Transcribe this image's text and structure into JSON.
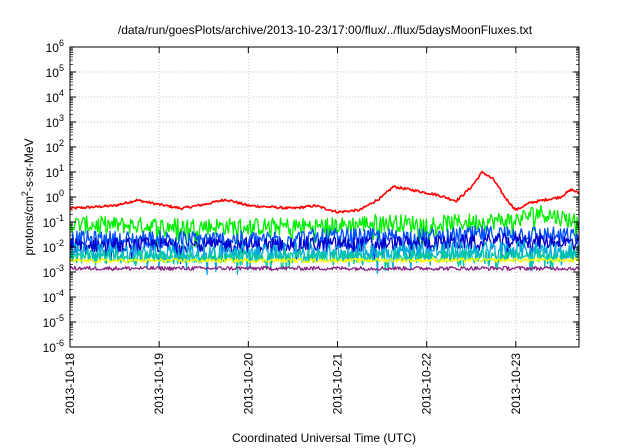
{
  "chart_data": {
    "type": "line",
    "title": "/data/run/goesPlots/archive/2013-10-23/17:00/flux/../flux/5daysMoonFluxes.txt",
    "xlabel": "Coordinated Universal Time (UTC)",
    "ylabel": "protons/cm2-s-sr-MeV",
    "ylabel_parts": {
      "pre": "protons/cm",
      "sup": "2",
      "post": "-s-sr-MeV"
    },
    "yscale": "log",
    "ylim": [
      1e-06,
      1000000.0
    ],
    "y_ticks": [
      {
        "base": "10",
        "exp": "-6"
      },
      {
        "base": "10",
        "exp": "-5"
      },
      {
        "base": "10",
        "exp": "-4"
      },
      {
        "base": "10",
        "exp": "-3"
      },
      {
        "base": "10",
        "exp": "-2"
      },
      {
        "base": "10",
        "exp": "-1"
      },
      {
        "base": "10",
        "exp": "0"
      },
      {
        "base": "10",
        "exp": "1"
      },
      {
        "base": "10",
        "exp": "2"
      },
      {
        "base": "10",
        "exp": "3"
      },
      {
        "base": "10",
        "exp": "4"
      },
      {
        "base": "10",
        "exp": "5"
      },
      {
        "base": "10",
        "exp": "6"
      }
    ],
    "xlim": [
      "2013-10-18",
      "2013-10-23 17:00"
    ],
    "x_ticks": [
      "2013-10-18",
      "2013-10-19",
      "2013-10-20",
      "2013-10-21",
      "2013-10-22",
      "2013-10-23"
    ],
    "grid": true,
    "series": [
      {
        "color": "#ff0000",
        "noise": 0.05,
        "values": [
          {
            "x": "2013-10-18 00:00",
            "y": 0.35
          },
          {
            "x": "2013-10-18 12:00",
            "y": 0.45
          },
          {
            "x": "2013-10-18 18:00",
            "y": 0.75
          },
          {
            "x": "2013-10-19 00:00",
            "y": 0.5
          },
          {
            "x": "2013-10-19 06:00",
            "y": 0.35
          },
          {
            "x": "2013-10-19 12:00",
            "y": 0.5
          },
          {
            "x": "2013-10-19 18:00",
            "y": 0.8
          },
          {
            "x": "2013-10-20 00:00",
            "y": 0.45
          },
          {
            "x": "2013-10-20 12:00",
            "y": 0.35
          },
          {
            "x": "2013-10-20 18:00",
            "y": 0.45
          },
          {
            "x": "2013-10-21 00:00",
            "y": 0.25
          },
          {
            "x": "2013-10-21 06:00",
            "y": 0.3
          },
          {
            "x": "2013-10-21 12:00",
            "y": 1.0
          },
          {
            "x": "2013-10-21 15:00",
            "y": 2.6
          },
          {
            "x": "2013-10-21 21:00",
            "y": 1.8
          },
          {
            "x": "2013-10-22 03:00",
            "y": 1.2
          },
          {
            "x": "2013-10-22 08:00",
            "y": 0.7
          },
          {
            "x": "2013-10-22 12:00",
            "y": 2.5
          },
          {
            "x": "2013-10-22 15:00",
            "y": 10.0
          },
          {
            "x": "2013-10-22 18:00",
            "y": 5.0
          },
          {
            "x": "2013-10-22 21:00",
            "y": 1.0
          },
          {
            "x": "2013-10-23 00:00",
            "y": 0.3
          },
          {
            "x": "2013-10-23 04:00",
            "y": 0.6
          },
          {
            "x": "2013-10-23 12:00",
            "y": 1.0
          },
          {
            "x": "2013-10-23 15:00",
            "y": 2.0
          },
          {
            "x": "2013-10-23 17:00",
            "y": 1.4
          }
        ]
      },
      {
        "color": "#00ee00",
        "noise": 0.35,
        "values": [
          {
            "x": "2013-10-18 00:00",
            "y": 0.08
          },
          {
            "x": "2013-10-19 00:00",
            "y": 0.07
          },
          {
            "x": "2013-10-20 00:00",
            "y": 0.065
          },
          {
            "x": "2013-10-21 00:00",
            "y": 0.07
          },
          {
            "x": "2013-10-21 12:00",
            "y": 0.1
          },
          {
            "x": "2013-10-22 00:00",
            "y": 0.08
          },
          {
            "x": "2013-10-23 00:00",
            "y": 0.12
          },
          {
            "x": "2013-10-23 06:00",
            "y": 0.25
          },
          {
            "x": "2013-10-23 17:00",
            "y": 0.1
          }
        ]
      },
      {
        "color": "#0050ff",
        "noise": 0.35,
        "values": [
          {
            "x": "2013-10-18 00:00",
            "y": 0.02
          },
          {
            "x": "2013-10-19 00:00",
            "y": 0.02
          },
          {
            "x": "2013-10-20 00:00",
            "y": 0.02
          },
          {
            "x": "2013-10-21 00:00",
            "y": 0.025
          },
          {
            "x": "2013-10-22 00:00",
            "y": 0.025
          },
          {
            "x": "2013-10-23 00:00",
            "y": 0.035
          },
          {
            "x": "2013-10-23 17:00",
            "y": 0.025
          }
        ]
      },
      {
        "color": "#0000cc",
        "noise": 0.3,
        "values": [
          {
            "x": "2013-10-18 00:00",
            "y": 0.012
          },
          {
            "x": "2013-10-20 00:00",
            "y": 0.012
          },
          {
            "x": "2013-10-21 00:00",
            "y": 0.013
          },
          {
            "x": "2013-10-22 00:00",
            "y": 0.014
          },
          {
            "x": "2013-10-23 00:00",
            "y": 0.018
          },
          {
            "x": "2013-10-23 17:00",
            "y": 0.015
          }
        ]
      },
      {
        "color": "#00aadd",
        "noise": 0.35,
        "values": [
          {
            "x": "2013-10-18 00:00",
            "y": 0.006
          },
          {
            "x": "2013-10-20 00:00",
            "y": 0.006
          },
          {
            "x": "2013-10-22 00:00",
            "y": 0.007
          },
          {
            "x": "2013-10-23 00:00",
            "y": 0.008
          },
          {
            "x": "2013-10-23 17:00",
            "y": 0.007
          }
        ]
      },
      {
        "color": "#00c8a0",
        "noise": 0.25,
        "values": [
          {
            "x": "2013-10-18 00:00",
            "y": 0.004
          },
          {
            "x": "2013-10-23 17:00",
            "y": 0.0045
          }
        ]
      },
      {
        "color": "#ffff00",
        "noise": 0.08,
        "values": [
          {
            "x": "2013-10-18 00:00",
            "y": 0.0028
          },
          {
            "x": "2013-10-23 17:00",
            "y": 0.003
          }
        ]
      },
      {
        "color": "#882288",
        "noise": 0.08,
        "values": [
          {
            "x": "2013-10-18 00:00",
            "y": 0.0014
          },
          {
            "x": "2013-10-23 17:00",
            "y": 0.0014
          }
        ]
      }
    ]
  }
}
